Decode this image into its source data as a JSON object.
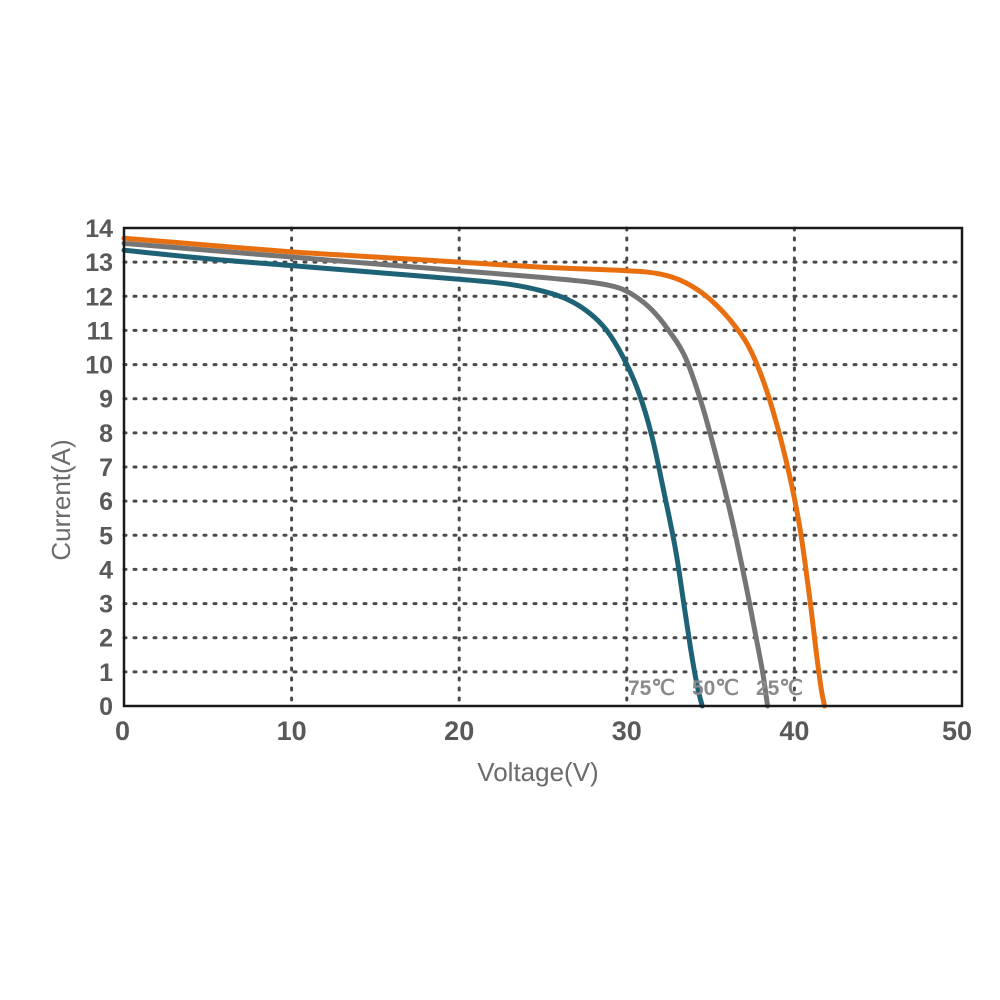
{
  "chart_data": {
    "type": "line",
    "title": "",
    "xlabel": "Voltage(V)",
    "ylabel": "Current(A)",
    "xlim": [
      0,
      50
    ],
    "ylim": [
      0,
      14
    ],
    "x_ticks": [
      "0",
      "10",
      "20",
      "30",
      "40",
      "50"
    ],
    "y_ticks": [
      "0",
      "1",
      "2",
      "3",
      "4",
      "5",
      "6",
      "7",
      "8",
      "9",
      "10",
      "11",
      "12",
      "13",
      "14"
    ],
    "grid": true,
    "series": [
      {
        "name": "25℃",
        "color": "#e86f10",
        "points": [
          [
            0,
            13.7
          ],
          [
            5,
            13.5
          ],
          [
            10,
            13.3
          ],
          [
            15,
            13.15
          ],
          [
            20,
            13.0
          ],
          [
            25,
            12.85
          ],
          [
            30,
            12.75
          ],
          [
            32,
            12.65
          ],
          [
            33.5,
            12.4
          ],
          [
            35,
            11.9
          ],
          [
            36.5,
            11.1
          ],
          [
            37.5,
            10.3
          ],
          [
            38.5,
            9.0
          ],
          [
            39.5,
            7.2
          ],
          [
            40.3,
            5.3
          ],
          [
            40.9,
            3.2
          ],
          [
            41.3,
            1.6
          ],
          [
            41.6,
            0.5
          ],
          [
            41.8,
            0
          ]
        ]
      },
      {
        "name": "50℃",
        "color": "#757575",
        "points": [
          [
            0,
            13.55
          ],
          [
            5,
            13.35
          ],
          [
            10,
            13.15
          ],
          [
            15,
            12.95
          ],
          [
            20,
            12.75
          ],
          [
            25,
            12.55
          ],
          [
            28,
            12.4
          ],
          [
            29.5,
            12.25
          ],
          [
            30.5,
            12.0
          ],
          [
            31.5,
            11.6
          ],
          [
            32.5,
            11.0
          ],
          [
            33.5,
            10.2
          ],
          [
            34.5,
            8.8
          ],
          [
            35.5,
            7.0
          ],
          [
            36.3,
            5.4
          ],
          [
            37,
            3.8
          ],
          [
            37.6,
            2.3
          ],
          [
            38.1,
            1.0
          ],
          [
            38.4,
            0
          ]
        ]
      },
      {
        "name": "75℃",
        "color": "#1e6275",
        "points": [
          [
            0,
            13.35
          ],
          [
            5,
            13.1
          ],
          [
            10,
            12.9
          ],
          [
            15,
            12.7
          ],
          [
            20,
            12.5
          ],
          [
            23,
            12.35
          ],
          [
            25,
            12.15
          ],
          [
            26.5,
            11.9
          ],
          [
            27.8,
            11.5
          ],
          [
            28.8,
            11.0
          ],
          [
            29.8,
            10.2
          ],
          [
            30.7,
            9.2
          ],
          [
            31.5,
            7.9
          ],
          [
            32.2,
            6.3
          ],
          [
            32.9,
            4.6
          ],
          [
            33.4,
            3.0
          ],
          [
            33.8,
            1.7
          ],
          [
            34.2,
            0.6
          ],
          [
            34.5,
            0
          ]
        ]
      }
    ],
    "annotations": [
      "75℃",
      "50℃",
      "25℃"
    ]
  }
}
